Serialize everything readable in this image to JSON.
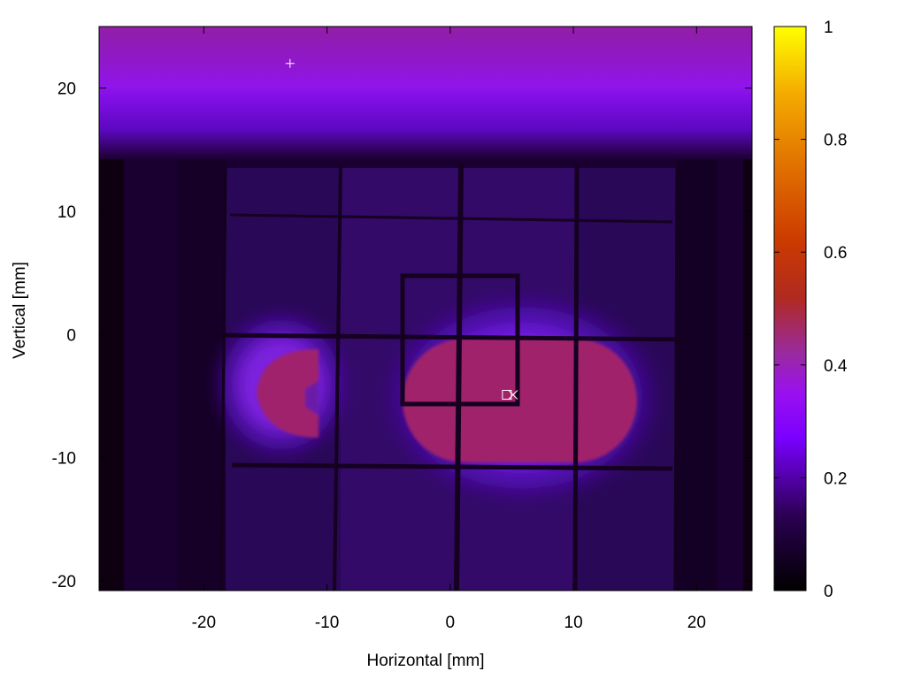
{
  "chart_data": {
    "type": "heatmap",
    "title": "",
    "xlabel": "Horizontal [mm]",
    "ylabel": "Vertical [mm]",
    "xlim": [
      -28.5,
      24.5
    ],
    "ylim": [
      -20.8,
      25
    ],
    "x_ticks": [
      -20,
      -10,
      0,
      10,
      20
    ],
    "x_tick_labels": [
      "-20",
      "-10",
      "0",
      "10",
      "20"
    ],
    "y_ticks": [
      -20,
      -10,
      0,
      10,
      20
    ],
    "y_tick_labels": [
      "-20",
      "-10",
      "0",
      "10",
      "20"
    ],
    "colorbar": {
      "range": [
        0,
        1
      ],
      "ticks": [
        0,
        0.2,
        0.4,
        0.6,
        0.8,
        1
      ],
      "tick_labels": [
        "0",
        "0.2",
        "0.4",
        "0.6",
        "0.8",
        "1"
      ],
      "colormap": [
        "#000000",
        "#3a0070",
        "#9a10ff",
        "#8a2ab8",
        "#c03010",
        "#e07000",
        "#f4b800",
        "#ffee00"
      ]
    },
    "regions": [
      {
        "name": "upper band",
        "x": [
          -28.5,
          24.5
        ],
        "y": [
          15,
          25
        ],
        "approx_value": 0.3
      },
      {
        "name": "main beam spot",
        "x": [
          -4,
          14
        ],
        "y": [
          -10,
          1.5
        ],
        "approx_value": 0.45
      },
      {
        "name": "secondary beam spot",
        "x": [
          -17,
          -10
        ],
        "y": [
          -8.5,
          -1
        ],
        "approx_value": 0.43
      },
      {
        "name": "detector background",
        "x": [
          -19,
          17
        ],
        "y": [
          -20.8,
          13.5
        ],
        "approx_value": 0.08
      }
    ],
    "markers": [
      {
        "symbol": "+",
        "x": -13,
        "y": 22
      },
      {
        "symbol": "square",
        "x": 4.6,
        "y": -4.9
      },
      {
        "symbol": "x",
        "x": 5.1,
        "y": -4.9
      }
    ],
    "grid": false,
    "legend": "colorbar-right"
  }
}
